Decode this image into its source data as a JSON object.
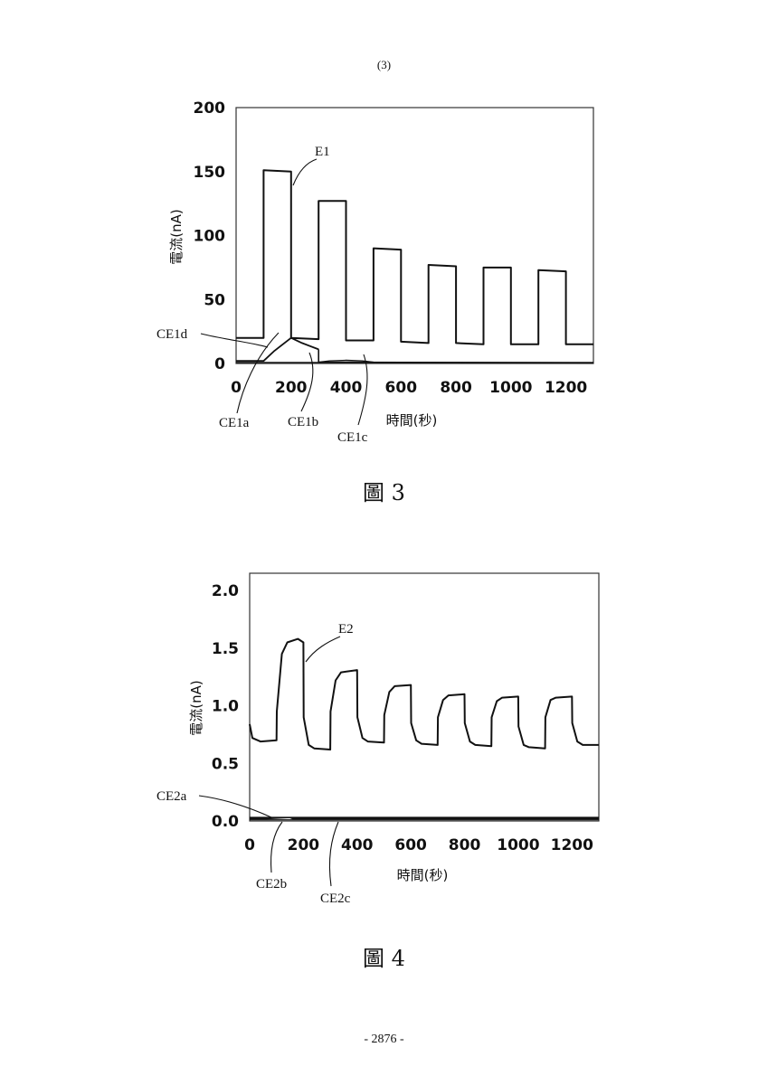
{
  "page": {
    "header": "(3)",
    "footer": "- 2876 -"
  },
  "figures": [
    {
      "caption": "圖 3",
      "chart": {
        "type": "line",
        "xlabel": "時間(秒)",
        "ylabel": "電流(nA)",
        "xlim": [
          0,
          1300
        ],
        "ylim": [
          0,
          200
        ],
        "x_ticks": [
          "0",
          "200",
          "400",
          "600",
          "800",
          "1000",
          "1200"
        ],
        "y_ticks": [
          "0",
          "50",
          "100",
          "150",
          "200"
        ],
        "grid": false,
        "annotations": [
          "E1",
          "CE1d",
          "CE1a",
          "CE1b",
          "CE1c"
        ],
        "series": [
          {
            "name": "E1",
            "x": [
              0,
              100,
              100,
              200,
              200,
              300,
              300,
              400,
              400,
              500,
              500,
              600,
              600,
              700,
              700,
              800,
              800,
              900,
              900,
              1000,
              1000,
              1100,
              1100,
              1200,
              1200,
              1300
            ],
            "y": [
              20,
              20,
              151,
              150,
              20,
              19,
              127,
              127,
              18,
              18,
              90,
              89,
              17,
              16,
              77,
              76,
              16,
              15,
              75,
              75,
              15,
              15,
              73,
              72,
              15,
              15
            ]
          },
          {
            "name": "CE1a",
            "x": [
              0,
              100,
              140,
              200,
              240,
              300
            ],
            "y": [
              2,
              2,
              10,
              20,
              16,
              11
            ]
          },
          {
            "name": "CE1b",
            "x": [
              300,
              300,
              1300
            ],
            "y": [
              11,
              1,
              0.5
            ]
          },
          {
            "name": "CE1c",
            "x": [
              300,
              340,
              400,
              460,
              500
            ],
            "y": [
              1,
              2,
              2.5,
              2,
              1
            ]
          },
          {
            "name": "CE1d",
            "x": [
              0,
              1300
            ],
            "y": [
              0.8,
              0.8
            ]
          }
        ]
      }
    },
    {
      "caption": "圖 4",
      "chart": {
        "type": "line",
        "xlabel": "時間(秒)",
        "ylabel": "電流(nA)",
        "xlim": [
          0,
          1300
        ],
        "ylim": [
          0,
          2.15
        ],
        "x_ticks": [
          "0",
          "200",
          "400",
          "600",
          "800",
          "1000",
          "1200"
        ],
        "y_ticks": [
          "0.0",
          "0.5",
          "1.0",
          "1.5",
          "2.0"
        ],
        "grid": false,
        "annotations": [
          "E2",
          "CE2a",
          "CE2b",
          "CE2c"
        ],
        "series": [
          {
            "name": "E2",
            "x": [
              0,
              10,
              40,
              100,
              101,
              120,
              140,
              180,
              200,
              201,
              220,
              240,
              300,
              301,
              320,
              340,
              400,
              401,
              420,
              440,
              500,
              501,
              520,
              540,
              600,
              601,
              620,
              640,
              700,
              701,
              720,
              740,
              800,
              801,
              820,
              840,
              900,
              901,
              920,
              940,
              1000,
              1001,
              1020,
              1040,
              1100,
              1101,
              1120,
              1140,
              1200,
              1201,
              1220,
              1240,
              1300
            ],
            "y": [
              0.84,
              0.72,
              0.69,
              0.7,
              0.95,
              1.45,
              1.55,
              1.58,
              1.55,
              0.9,
              0.66,
              0.63,
              0.62,
              0.95,
              1.22,
              1.29,
              1.31,
              0.9,
              0.72,
              0.69,
              0.68,
              0.92,
              1.12,
              1.17,
              1.18,
              0.85,
              0.7,
              0.67,
              0.66,
              0.9,
              1.05,
              1.09,
              1.1,
              0.85,
              0.69,
              0.66,
              0.65,
              0.9,
              1.04,
              1.07,
              1.08,
              0.82,
              0.66,
              0.64,
              0.63,
              0.9,
              1.05,
              1.07,
              1.08,
              0.85,
              0.69,
              0.66,
              0.66
            ]
          },
          {
            "name": "CE2a",
            "x": [
              0,
              1300
            ],
            "y": [
              0.03,
              0.03
            ]
          },
          {
            "name": "CE2b",
            "x": [
              0,
              60,
              150,
              160,
              1300
            ],
            "y": [
              0.02,
              0.02,
              0.03,
              0.02,
              0.02
            ]
          },
          {
            "name": "CE2c",
            "x": [
              0,
              1300
            ],
            "y": [
              0.01,
              0.01
            ]
          }
        ]
      }
    }
  ],
  "chart_data": [
    {
      "type": "line",
      "xlabel": "時間(秒)",
      "ylabel": "電流(nA)",
      "xlim": [
        0,
        1300
      ],
      "ylim": [
        0,
        200
      ],
      "series": [
        {
          "name": "E1",
          "x": [
            0,
            100,
            100,
            200,
            200,
            300,
            300,
            400,
            400,
            500,
            500,
            600,
            600,
            700,
            700,
            800,
            800,
            900,
            900,
            1000,
            1000,
            1100,
            1100,
            1200,
            1200,
            1300
          ],
          "y": [
            20,
            20,
            151,
            150,
            20,
            19,
            127,
            127,
            18,
            18,
            90,
            89,
            17,
            16,
            77,
            76,
            16,
            15,
            75,
            75,
            15,
            15,
            73,
            72,
            15,
            15
          ]
        },
        {
          "name": "CE1a",
          "x": [
            0,
            100,
            140,
            200,
            240,
            300
          ],
          "y": [
            2,
            2,
            10,
            20,
            16,
            11
          ]
        },
        {
          "name": "CE1b",
          "x": [
            300,
            300,
            1300
          ],
          "y": [
            11,
            1,
            0.5
          ]
        },
        {
          "name": "CE1c",
          "x": [
            300,
            340,
            400,
            460,
            500
          ],
          "y": [
            1,
            2,
            2.5,
            2,
            1
          ]
        },
        {
          "name": "CE1d",
          "x": [
            0,
            1300
          ],
          "y": [
            0.8,
            0.8
          ]
        }
      ]
    },
    {
      "type": "line",
      "xlabel": "時間(秒)",
      "ylabel": "電流(nA)",
      "xlim": [
        0,
        1300
      ],
      "ylim": [
        0,
        2.15
      ],
      "series": [
        {
          "name": "E2",
          "x": [
            0,
            10,
            40,
            100,
            101,
            120,
            140,
            180,
            200,
            201,
            220,
            240,
            300,
            301,
            320,
            340,
            400,
            401,
            420,
            440,
            500,
            501,
            520,
            540,
            600,
            601,
            620,
            640,
            700,
            701,
            720,
            740,
            800,
            801,
            820,
            840,
            900,
            901,
            920,
            940,
            1000,
            1001,
            1020,
            1040,
            1100,
            1101,
            1120,
            1140,
            1200,
            1201,
            1220,
            1240,
            1300
          ],
          "y": [
            0.84,
            0.72,
            0.69,
            0.7,
            0.95,
            1.45,
            1.55,
            1.58,
            1.55,
            0.9,
            0.66,
            0.63,
            0.62,
            0.95,
            1.22,
            1.29,
            1.31,
            0.9,
            0.72,
            0.69,
            0.68,
            0.92,
            1.12,
            1.17,
            1.18,
            0.85,
            0.7,
            0.67,
            0.66,
            0.9,
            1.05,
            1.09,
            1.1,
            0.85,
            0.69,
            0.66,
            0.65,
            0.9,
            1.04,
            1.07,
            1.08,
            0.82,
            0.66,
            0.64,
            0.63,
            0.9,
            1.05,
            1.07,
            1.08,
            0.85,
            0.69,
            0.66,
            0.66
          ]
        },
        {
          "name": "CE2a",
          "x": [
            0,
            1300
          ],
          "y": [
            0.03,
            0.03
          ]
        },
        {
          "name": "CE2b",
          "x": [
            0,
            60,
            150,
            160,
            1300
          ],
          "y": [
            0.02,
            0.02,
            0.03,
            0.02,
            0.02
          ]
        },
        {
          "name": "CE2c",
          "x": [
            0,
            1300
          ],
          "y": [
            0.01,
            0.01
          ]
        }
      ]
    }
  ]
}
